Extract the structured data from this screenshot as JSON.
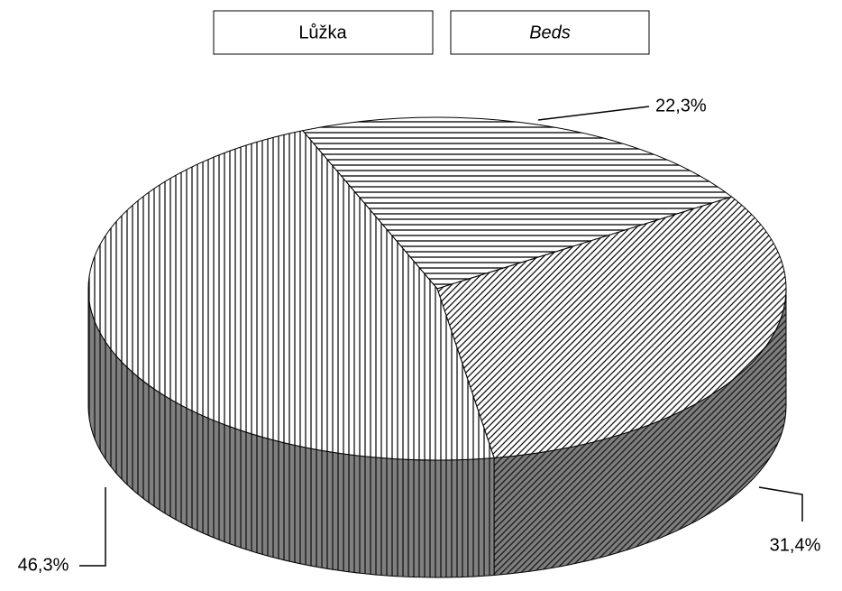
{
  "chart_data": {
    "type": "pie3d",
    "title": "Lůžka",
    "subtitle": "Beds",
    "values": [
      22.3,
      31.4,
      46.3
    ],
    "value_labels": [
      "22,3%",
      "31,4%",
      "46,3%"
    ]
  }
}
